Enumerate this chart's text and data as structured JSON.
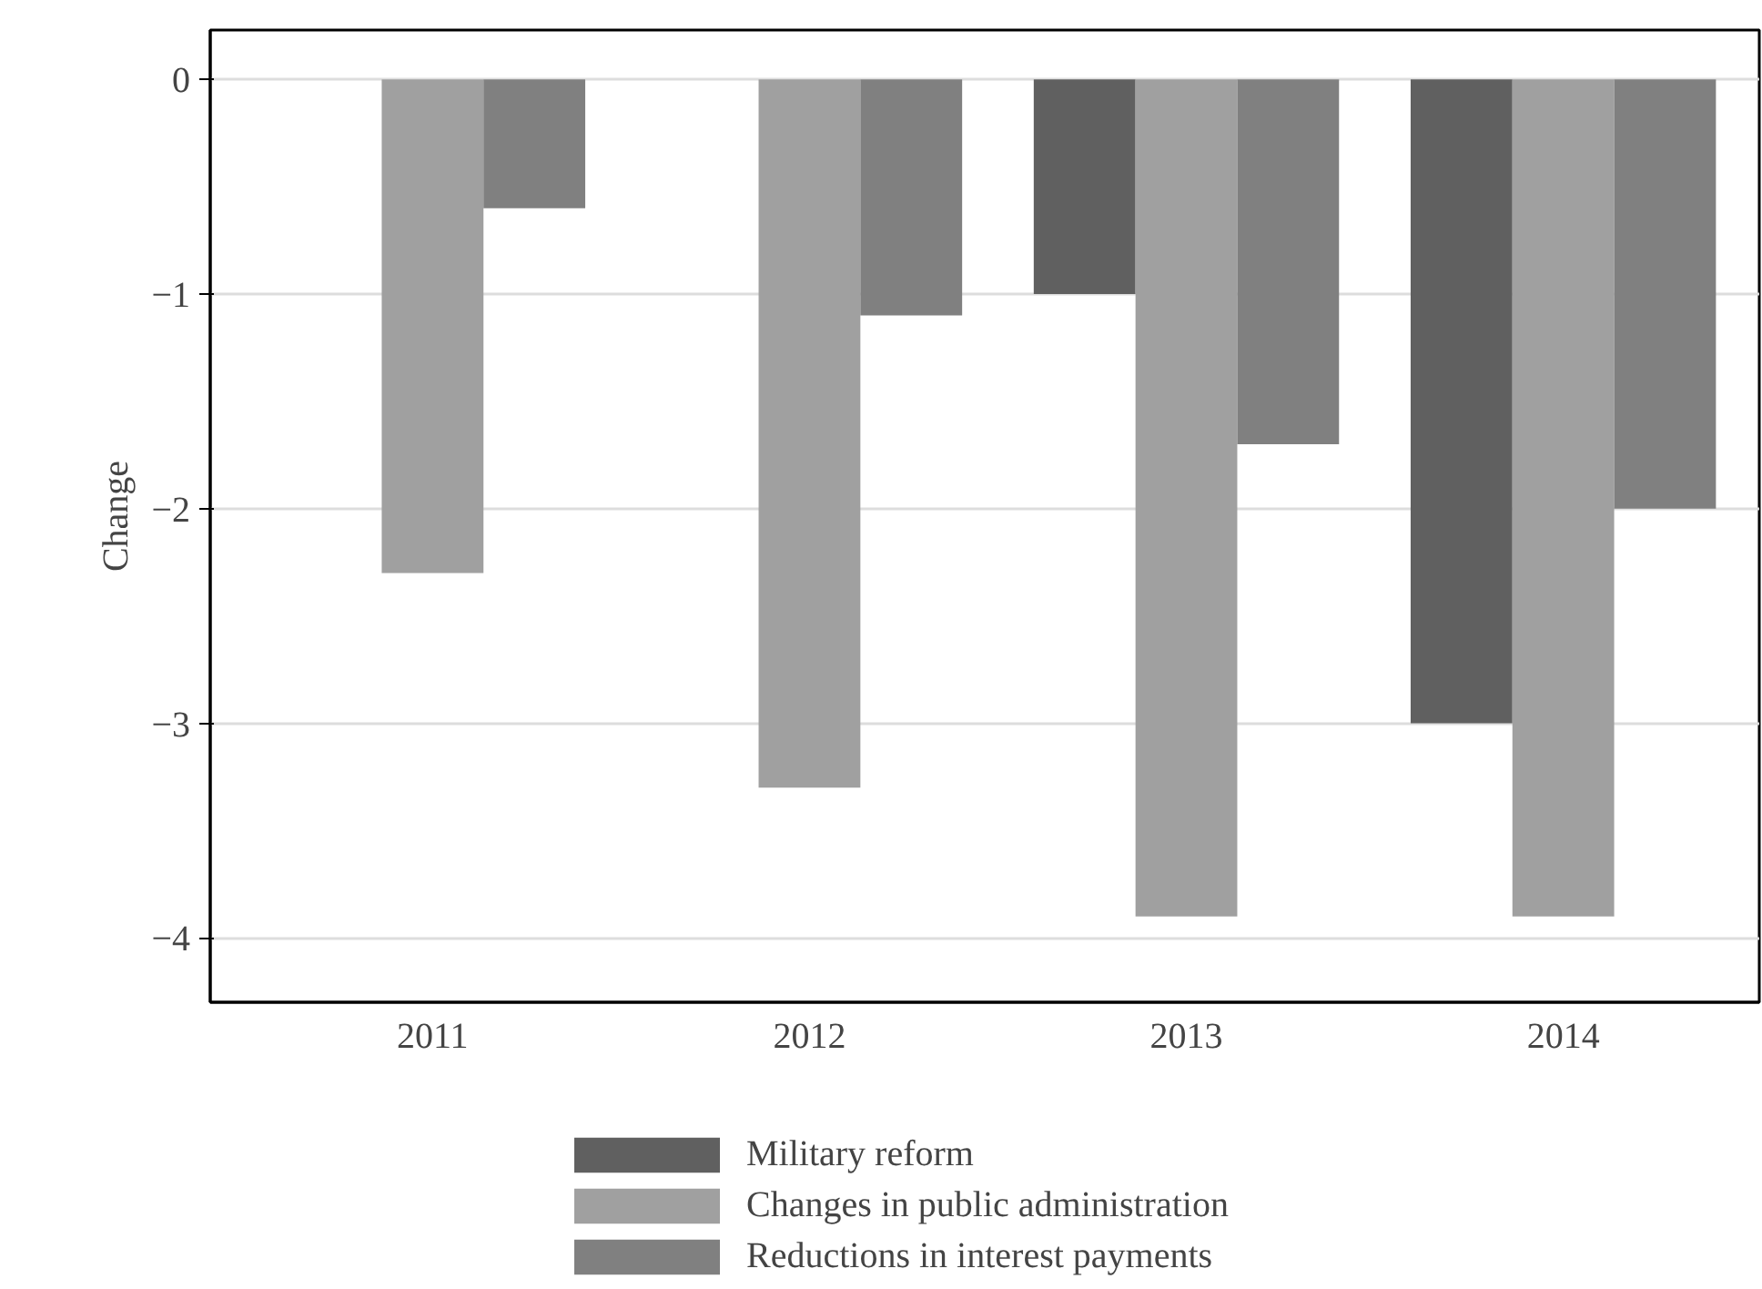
{
  "chart_data": {
    "type": "bar",
    "ylabel": "Change",
    "categories": [
      "2011",
      "2012",
      "2013",
      "2014"
    ],
    "series": [
      {
        "name": "Military reform",
        "color": "#606060",
        "values": [
          null,
          null,
          -1.0,
          -3.0
        ]
      },
      {
        "name": "Changes in public administration",
        "color": "#a0a0a0",
        "values": [
          -2.3,
          -3.3,
          -3.9,
          -3.9
        ]
      },
      {
        "name": "Reductions in interest payments",
        "color": "#808080",
        "values": [
          -0.6,
          -1.1,
          -1.7,
          -2.0
        ]
      }
    ],
    "ylim": [
      -4.3,
      0.23
    ],
    "yticks": [
      0,
      -1,
      -2,
      -3,
      -4
    ],
    "grid": "y",
    "legend": "bottom"
  }
}
